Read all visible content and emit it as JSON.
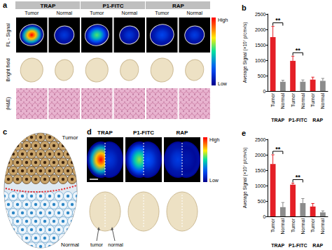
{
  "chart_data": [
    {
      "type": "bar",
      "title": "b",
      "categories": [
        "Tumor",
        "Normal",
        "Tumor",
        "Normal",
        "Tumor",
        "Normal"
      ],
      "groups": [
        "TRAP",
        "P1-FITC",
        "RAP"
      ],
      "values": [
        1750,
        300,
        980,
        300,
        370,
        330
      ],
      "errors": [
        350,
        50,
        150,
        60,
        80,
        80
      ],
      "colors": [
        "#e41f26",
        "#8c8c8c",
        "#e41f26",
        "#8c8c8c",
        "#e41f26",
        "#8c8c8c"
      ],
      "y_label": "Average Signal (×10⁷ p/cm²/s)",
      "ylim": [
        0,
        2500
      ],
      "yticks": [
        0,
        500,
        1000,
        1500,
        2000,
        2500
      ],
      "grid": false,
      "annotations": [
        {
          "text": "**",
          "from": 0,
          "to": 1
        },
        {
          "text": "**",
          "from": 2,
          "to": 3
        }
      ]
    },
    {
      "type": "bar",
      "title": "e",
      "categories": [
        "Tumor",
        "Normal",
        "Tumor",
        "Normal",
        "Tumor",
        "Normal"
      ],
      "groups": [
        "TRAP",
        "P1-FITC",
        "RAP"
      ],
      "values": [
        1700,
        300,
        1030,
        430,
        320,
        130
      ],
      "errors": [
        300,
        150,
        50,
        150,
        100,
        50
      ],
      "colors": [
        "#e41f26",
        "#8c8c8c",
        "#e41f26",
        "#8c8c8c",
        "#e41f26",
        "#8c8c8c"
      ],
      "y_label": "Average Signal (×10⁷ p/cm²/s)",
      "ylim": [
        0,
        2500
      ],
      "yticks": [
        0,
        500,
        1000,
        1500,
        2000,
        2500
      ],
      "grid": false,
      "annotations": [
        {
          "text": "**",
          "from": 0,
          "to": 1
        },
        {
          "text": "**",
          "from": 2,
          "to": 3
        }
      ]
    }
  ],
  "panels": {
    "a": {
      "letter": "a",
      "columns": [
        "TRAP",
        "P1-FITC",
        "RAP"
      ],
      "subcolumns": [
        "Tumor",
        "Normal"
      ],
      "rows": [
        "FL - Signal",
        "Bright field",
        "(H&E)"
      ],
      "colorbar": [
        "High",
        "Low"
      ]
    },
    "c": {
      "letter": "c",
      "labels": [
        "Tumor",
        "Normal"
      ]
    },
    "d": {
      "letter": "d",
      "columns": [
        "TRAP",
        "P1-FITC",
        "RAP"
      ],
      "colorbar": [
        "High",
        "Low"
      ],
      "labels": [
        "tumor",
        "normal"
      ]
    }
  }
}
